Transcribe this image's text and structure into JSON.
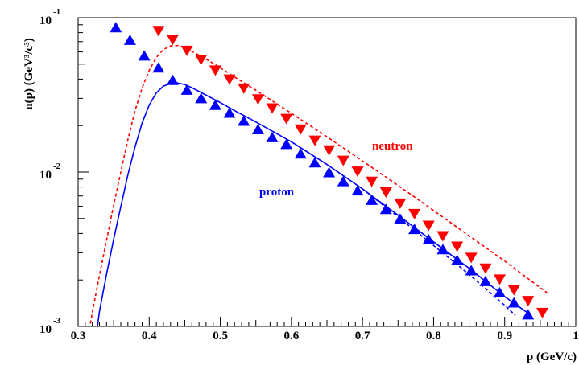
{
  "chart_data": {
    "type": "scatter",
    "xlabel": "p  (GeV/c)",
    "ylabel": "n(p) (GeV³/c³)",
    "xlim": [
      0.3,
      1.0
    ],
    "ylim": [
      0.001,
      0.1
    ],
    "yscale": "log",
    "grid": false,
    "x_ticks": [
      "0.3",
      "0.4",
      "0.5",
      "0.6",
      "0.7",
      "0.8",
      "0.9",
      "1"
    ],
    "y_ticks": [
      {
        "base": "10",
        "exp": "-3",
        "value": 0.001
      },
      {
        "base": "10",
        "exp": "-2",
        "value": 0.01
      },
      {
        "base": "10",
        "exp": "-1",
        "value": 0.1
      }
    ],
    "annotations": [
      {
        "text": "neutron",
        "color": "#ff0000"
      },
      {
        "text": "proton",
        "color": "#0000ff"
      }
    ],
    "series": [
      {
        "marker": "triangle-down",
        "color": "#ff0000",
        "x": [
          0.413,
          0.433,
          0.453,
          0.473,
          0.493,
          0.513,
          0.533,
          0.553,
          0.573,
          0.593,
          0.613,
          0.633,
          0.653,
          0.673,
          0.693,
          0.713,
          0.733,
          0.753,
          0.773,
          0.793,
          0.813,
          0.833,
          0.853,
          0.873,
          0.893,
          0.913,
          0.933,
          0.953
        ],
        "y": [
          0.083,
          0.0728,
          0.0618,
          0.054,
          0.0461,
          0.0403,
          0.0352,
          0.03,
          0.0262,
          0.0224,
          0.0191,
          0.0162,
          0.014,
          0.012,
          0.0102,
          0.00877,
          0.00748,
          0.00633,
          0.00542,
          0.00455,
          0.00389,
          0.00333,
          0.00282,
          0.0024,
          0.00204,
          0.00174,
          0.00148,
          0.00124
        ]
      },
      {
        "marker": "triangle-up",
        "color": "#0000ff",
        "x": [
          0.353,
          0.373,
          0.393,
          0.413,
          0.433,
          0.453,
          0.473,
          0.493,
          0.513,
          0.533,
          0.553,
          0.573,
          0.593,
          0.613,
          0.633,
          0.653,
          0.673,
          0.693,
          0.713,
          0.733,
          0.753,
          0.773,
          0.793,
          0.813,
          0.833,
          0.853,
          0.873,
          0.893,
          0.913,
          0.933
        ],
        "y": [
          0.0856,
          0.0709,
          0.0561,
          0.0469,
          0.039,
          0.0337,
          0.0297,
          0.0269,
          0.0239,
          0.0212,
          0.0187,
          0.0166,
          0.015,
          0.013,
          0.0114,
          0.00985,
          0.00862,
          0.00751,
          0.00652,
          0.00569,
          0.00493,
          0.00422,
          0.00363,
          0.00312,
          0.00266,
          0.00228,
          0.00194,
          0.00164,
          0.00141,
          0.00118
        ]
      },
      {
        "style": "dashed",
        "color": "#ff0000",
        "x": [
          0.316,
          0.32,
          0.33,
          0.34,
          0.35,
          0.36,
          0.37,
          0.38,
          0.39,
          0.4,
          0.41,
          0.42,
          0.43,
          0.44,
          0.45,
          0.46,
          0.48,
          0.5,
          0.52,
          0.55,
          0.6,
          0.65,
          0.7,
          0.75,
          0.8,
          0.85,
          0.9,
          0.95,
          0.962
        ],
        "y": [
          0.00096,
          0.00124,
          0.00214,
          0.00362,
          0.00609,
          0.01,
          0.0162,
          0.0249,
          0.0351,
          0.0456,
          0.0553,
          0.0622,
          0.0656,
          0.066,
          0.0638,
          0.0606,
          0.0539,
          0.0474,
          0.0413,
          0.0339,
          0.024,
          0.0169,
          0.0118,
          0.00819,
          0.00564,
          0.00386,
          0.00265,
          0.00178,
          0.00162
        ]
      },
      {
        "style": "solid",
        "color": "#0000ff",
        "x": [
          0.327,
          0.33,
          0.34,
          0.35,
          0.36,
          0.37,
          0.38,
          0.39,
          0.4,
          0.41,
          0.42,
          0.43,
          0.44,
          0.45,
          0.46,
          0.48,
          0.5,
          0.52,
          0.55,
          0.6,
          0.65,
          0.7,
          0.75,
          0.8,
          0.85,
          0.9,
          0.935
        ],
        "y": [
          0.00098,
          0.00125,
          0.00218,
          0.00366,
          0.00597,
          0.0096,
          0.0145,
          0.0208,
          0.0272,
          0.0326,
          0.036,
          0.0375,
          0.0377,
          0.0369,
          0.0352,
          0.0315,
          0.0282,
          0.025,
          0.0211,
          0.0157,
          0.0112,
          0.00778,
          0.00525,
          0.00353,
          0.00238,
          0.00156,
          0.0012
        ]
      },
      {
        "style": "dashed",
        "color": "#0000ff",
        "x": [
          0.7,
          0.75,
          0.8,
          0.85,
          0.9,
          0.915
        ],
        "y": [
          0.00778,
          0.00513,
          0.00335,
          0.00217,
          0.00137,
          0.00118
        ]
      }
    ]
  }
}
